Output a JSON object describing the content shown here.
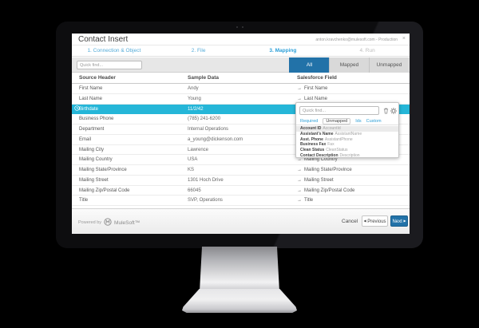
{
  "window": {
    "title": "Contact Insert",
    "account": "anton.kravchenko@mulesoft.com - Production",
    "close_label": "×"
  },
  "steps": [
    {
      "label": "1. Connection & Object",
      "state": "done"
    },
    {
      "label": "2. File",
      "state": "done"
    },
    {
      "label": "3. Mapping",
      "state": "active"
    },
    {
      "label": "4. Run",
      "state": "upcoming"
    }
  ],
  "filter": {
    "quick_find_placeholder": "Quick find...",
    "tabs": [
      {
        "label": "All",
        "active": true
      },
      {
        "label": "Mapped",
        "active": false
      },
      {
        "label": "Unmapped",
        "active": false
      }
    ]
  },
  "table": {
    "columns": [
      "Source Header",
      "Sample Data",
      "Salesforce Field"
    ],
    "rows": [
      {
        "source": "First Name",
        "sample": "Andy",
        "mapped": "First Name"
      },
      {
        "source": "Last Name",
        "sample": "Young",
        "mapped": "Last Name"
      },
      {
        "source": "Birthdate",
        "sample": "11/2/42",
        "mapped": "",
        "selected": true,
        "type_icon": "clock-icon"
      },
      {
        "source": "Business Phone",
        "sample": "(785) 241-6200",
        "mapped": ""
      },
      {
        "source": "Department",
        "sample": "Internal Operations",
        "mapped": ""
      },
      {
        "source": "Email",
        "sample": "a_young@dickenson.com",
        "mapped": ""
      },
      {
        "source": "Mailing City",
        "sample": "Lawrence",
        "mapped": ""
      },
      {
        "source": "Mailing Country",
        "sample": "USA",
        "mapped": "Mailing Country"
      },
      {
        "source": "Mailing State/Province",
        "sample": "KS",
        "mapped": "Mailing State/Province"
      },
      {
        "source": "Mailing Street",
        "sample": "1301 Hoch Drive",
        "mapped": "Mailing Street"
      },
      {
        "source": "Mailing Zip/Postal Code",
        "sample": "66045",
        "mapped": "Mailing Zip/Postal Code"
      },
      {
        "source": "Title",
        "sample": "SVP, Operations",
        "mapped": "Title"
      }
    ]
  },
  "mapping_dropdown": {
    "quick_find_placeholder": "Quick find...",
    "tabs": [
      {
        "label": "Required",
        "active": false
      },
      {
        "label": "Unmapped",
        "active": true
      },
      {
        "label": "Ids",
        "active": false
      },
      {
        "label": "Custom",
        "active": false
      }
    ],
    "fields": [
      {
        "label": "Account ID",
        "api": "AccountId",
        "highlighted": true
      },
      {
        "label": "Assistant's Name",
        "api": "AssistantName"
      },
      {
        "label": "Asst. Phone",
        "api": "AssistantPhone"
      },
      {
        "label": "Business Fax",
        "api": "Fax"
      },
      {
        "label": "Clean Status",
        "api": "CleanStatus"
      },
      {
        "label": "Contact Description",
        "api": "Description"
      }
    ]
  },
  "footer": {
    "powered_by": "Powered by",
    "brand": "MuleSoft™",
    "cancel_label": "Cancel",
    "previous_label": "Previous",
    "previous_arrow": "◀",
    "next_label": "Next",
    "next_arrow": "▶"
  },
  "colors": {
    "selected_row": "#25b6d8",
    "primary_button": "#2272a8",
    "link_blue": "#2e9fd6",
    "step_link": "#54abd8",
    "step_active": "#2b9fd8"
  }
}
